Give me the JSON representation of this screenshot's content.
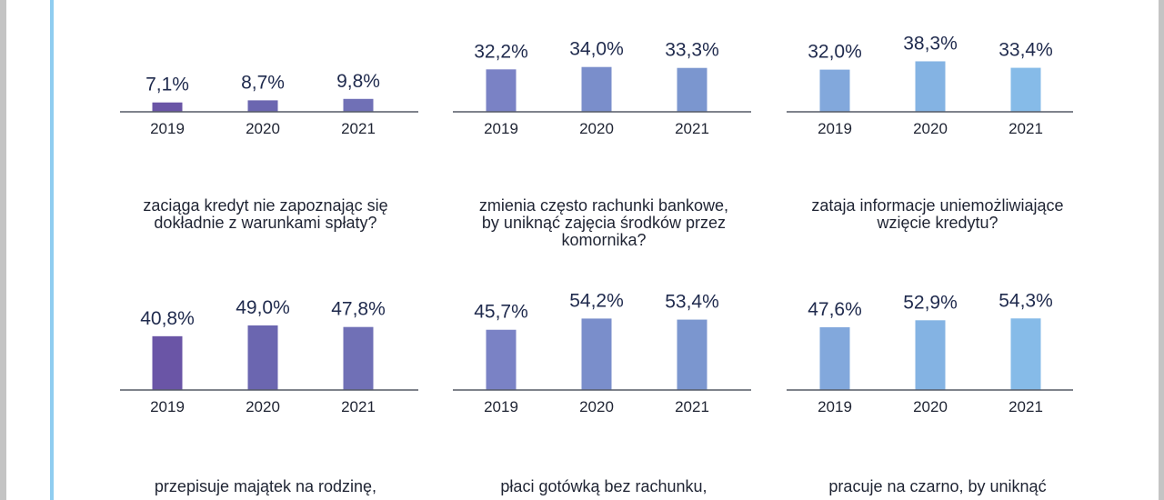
{
  "colors": {
    "accent_line": "#8fcdf0",
    "axis": "#555a66",
    "value_text": "#1f2a4d",
    "tick_text": "#1f2433",
    "series": [
      "#6a55a6",
      "#6b66b0",
      "#7070b6",
      "#7a82c5",
      "#7a8ecb",
      "#7b96cf",
      "#82a8dc",
      "#84b3e3",
      "#86bbe8"
    ]
  },
  "chart_data": [
    {
      "type": "bar",
      "categories": [
        "2019",
        "2020",
        "2021"
      ],
      "values": [
        7.1,
        8.7,
        9.8
      ],
      "value_labels": [
        "7,1%",
        "8,7%",
        "9,8%"
      ],
      "title": "zaciąga kredyt nie zapoznając się\ndokładnie z warunkami spłaty?",
      "ylim": [
        0,
        60
      ],
      "colors": [
        "#6a55a6",
        "#6b66b0",
        "#7070b6"
      ]
    },
    {
      "type": "bar",
      "categories": [
        "2019",
        "2020",
        "2021"
      ],
      "values": [
        32.2,
        34.0,
        33.3
      ],
      "value_labels": [
        "32,2%",
        "34,0%",
        "33,3%"
      ],
      "title": "zmienia często rachunki bankowe,\nby uniknąć zajęcia środków przez\nkomornika?",
      "ylim": [
        0,
        60
      ],
      "colors": [
        "#7a82c5",
        "#7a8ecb",
        "#7b96cf"
      ]
    },
    {
      "type": "bar",
      "categories": [
        "2019",
        "2020",
        "2021"
      ],
      "values": [
        32.0,
        38.3,
        33.4
      ],
      "value_labels": [
        "32,0%",
        "38,3%",
        "33,4%"
      ],
      "title": "zataja informacje uniemożliwiające\nwzięcie kredytu?",
      "ylim": [
        0,
        60
      ],
      "colors": [
        "#82a8dc",
        "#84b3e3",
        "#86bbe8"
      ]
    },
    {
      "type": "bar",
      "categories": [
        "2019",
        "2020",
        "2021"
      ],
      "values": [
        40.8,
        49.0,
        47.8
      ],
      "value_labels": [
        "40,8%",
        "49,0%",
        "47,8%"
      ],
      "title": "przepisuje majątek na rodzinę,",
      "ylim": [
        0,
        60
      ],
      "colors": [
        "#6a55a6",
        "#6b66b0",
        "#7070b6"
      ]
    },
    {
      "type": "bar",
      "categories": [
        "2019",
        "2020",
        "2021"
      ],
      "values": [
        45.7,
        54.2,
        53.4
      ],
      "value_labels": [
        "45,7%",
        "54,2%",
        "53,4%"
      ],
      "title": "płaci gotówką bez rachunku,",
      "ylim": [
        0,
        60
      ],
      "colors": [
        "#7a82c5",
        "#7a8ecb",
        "#7b96cf"
      ]
    },
    {
      "type": "bar",
      "categories": [
        "2019",
        "2020",
        "2021"
      ],
      "values": [
        47.6,
        52.9,
        54.3
      ],
      "value_labels": [
        "47,6%",
        "52,9%",
        "54,3%"
      ],
      "title": "pracuje na czarno, by uniknąć",
      "ylim": [
        0,
        60
      ],
      "colors": [
        "#82a8dc",
        "#84b3e3",
        "#86bbe8"
      ]
    }
  ]
}
